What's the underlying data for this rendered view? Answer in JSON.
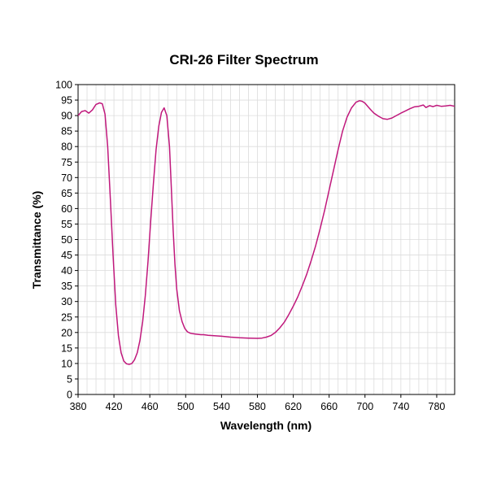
{
  "chart_data": {
    "type": "line",
    "title": "CRI-26 Filter Spectrum",
    "xlabel": "Wavelength (nm)",
    "ylabel": "Transmittance (%)",
    "xlim": [
      380,
      800
    ],
    "ylim": [
      0,
      100
    ],
    "x_ticks": [
      380,
      420,
      460,
      500,
      540,
      580,
      620,
      660,
      700,
      740,
      780
    ],
    "y_ticks": [
      0,
      5,
      10,
      15,
      20,
      25,
      30,
      35,
      40,
      45,
      50,
      55,
      60,
      65,
      70,
      75,
      80,
      85,
      90,
      95,
      100
    ],
    "grid": true,
    "line_color": "#c0187c",
    "series": [
      {
        "x": [
          380,
          384,
          388,
          392,
          396,
          400,
          404,
          407,
          410,
          413,
          416,
          419,
          422,
          425,
          428,
          431,
          434,
          437,
          440,
          443,
          446,
          449,
          452,
          455,
          458,
          461,
          464,
          467,
          470,
          473,
          476,
          479,
          482,
          484,
          486,
          488,
          490,
          493,
          496,
          499,
          502,
          505,
          508,
          511,
          514,
          517,
          520,
          525,
          530,
          540,
          550,
          560,
          570,
          580,
          585,
          590,
          595,
          600,
          605,
          610,
          615,
          620,
          625,
          630,
          635,
          640,
          645,
          650,
          655,
          660,
          665,
          670,
          675,
          680,
          685,
          690,
          694,
          697,
          700,
          703,
          706,
          710,
          715,
          720,
          725,
          730,
          735,
          740,
          745,
          750,
          755,
          760,
          765,
          768,
          772,
          776,
          780,
          785,
          790,
          795,
          800
        ],
        "y": [
          90,
          91.3,
          91.6,
          90.8,
          91.8,
          93.6,
          94.1,
          93.8,
          90.5,
          80,
          63,
          45,
          29,
          19,
          13.5,
          10.8,
          9.9,
          9.7,
          10,
          11.2,
          13.5,
          17.5,
          23.5,
          32,
          43,
          56,
          68,
          79,
          86.5,
          91,
          92.5,
          90,
          80,
          67,
          53,
          42,
          34,
          27,
          23.5,
          21.3,
          20.2,
          19.8,
          19.6,
          19.5,
          19.4,
          19.3,
          19.3,
          19.1,
          19,
          18.8,
          18.5,
          18.3,
          18.2,
          18.1,
          18.2,
          18.5,
          19,
          20,
          21.5,
          23.3,
          25.8,
          28.5,
          31.5,
          35,
          38.8,
          43.2,
          48,
          53.5,
          59.5,
          66,
          72.5,
          79,
          85,
          89.5,
          92.5,
          94.3,
          94.8,
          94.6,
          94,
          93,
          92,
          90.8,
          89.8,
          89,
          88.8,
          89.2,
          90,
          90.8,
          91.5,
          92.2,
          92.8,
          93,
          93.4,
          92.6,
          93.2,
          92.9,
          93.3,
          93,
          93.1,
          93.3,
          93
        ]
      }
    ]
  }
}
